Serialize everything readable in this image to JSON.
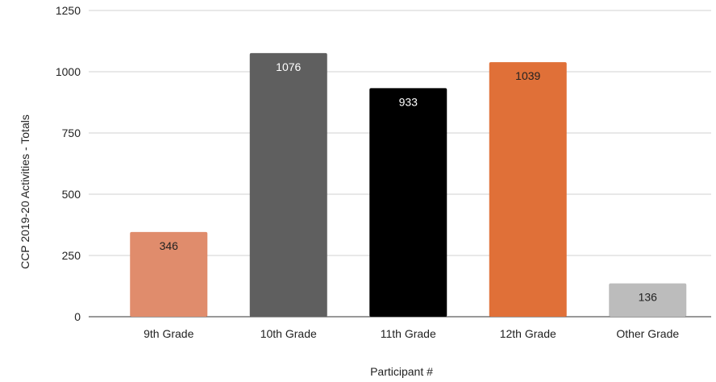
{
  "chart_data": {
    "type": "bar",
    "title": "",
    "xlabel": "Participant #",
    "ylabel": "CCP 2019-20 Activities - Totals",
    "categories": [
      "9th Grade",
      "10th Grade",
      "11th Grade",
      "12th Grade",
      "Other Grade"
    ],
    "values": [
      346,
      1076,
      933,
      1039,
      136
    ],
    "colors": [
      "#e08c6c",
      "#5f5f5f",
      "#000000",
      "#e07038",
      "#bcbcbc"
    ],
    "label_colors": [
      "#222222",
      "#ffffff",
      "#ffffff",
      "#222222",
      "#222222"
    ],
    "ylim": [
      0,
      1250
    ],
    "yticks": [
      0,
      250,
      500,
      750,
      1000,
      1250
    ],
    "grid": true,
    "legend": "none"
  }
}
